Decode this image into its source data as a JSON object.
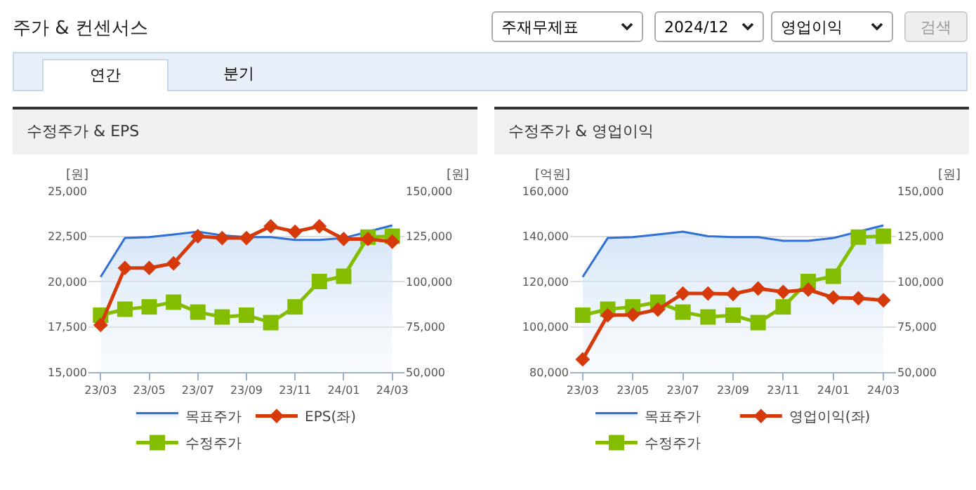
{
  "chart_data": [
    {
      "type": "other",
      "title": "주가 & 컨센서스",
      "annotations": [
        "주재무제표",
        "2024/12",
        "영업이익",
        "검색",
        "연간",
        "분기"
      ]
    },
    {
      "type": "line",
      "title": "수정주가 & EPS",
      "ylabel": "[원]",
      "y2label": "[원]",
      "categories": [
        "23/03",
        null,
        "23/05",
        null,
        "23/07",
        null,
        "23/09",
        null,
        "23/11",
        null,
        "24/01",
        null,
        "24/03"
      ],
      "series": [
        {
          "name": "목표주가",
          "type": "area",
          "axis": "y2",
          "color": "#2f6fd6",
          "marker": "none",
          "values": [
            102500,
            124000,
            124500,
            126000,
            127500,
            125500,
            124500,
            124500,
            123000,
            123000,
            124000,
            127500,
            131000
          ]
        },
        {
          "name": "EPS(좌)",
          "type": "line",
          "color": "#d63a0a",
          "marker": "diamond",
          "values": [
            17600,
            20750,
            20750,
            21000,
            22500,
            22400,
            22400,
            23050,
            22750,
            23050,
            22350,
            22350,
            22200
          ]
        },
        {
          "name": "수정주가",
          "type": "line",
          "axis": "y2",
          "color": "#84bd00",
          "marker": "square",
          "values": [
            81400,
            84700,
            86000,
            88600,
            83100,
            80400,
            81400,
            77300,
            86000,
            100000,
            102900,
            124500,
            125000
          ]
        }
      ],
      "ylim": [
        15000,
        25000
      ],
      "yticks": [
        {
          "value": 15000,
          "label": "15,000"
        },
        {
          "value": 17500,
          "label": "17,500"
        },
        {
          "value": 20000,
          "label": "20,000"
        },
        {
          "value": 22500,
          "label": "22,500"
        },
        {
          "value": 25000,
          "label": "25,000"
        }
      ],
      "y2lim": [
        50000,
        150000
      ],
      "y2ticks": [
        {
          "value": 50000,
          "label": "50,000"
        },
        {
          "value": 75000,
          "label": "75,000"
        },
        {
          "value": 100000,
          "label": "100,000"
        },
        {
          "value": 125000,
          "label": "125,000"
        },
        {
          "value": 150000,
          "label": "150,000"
        }
      ],
      "grid": "y",
      "legend": "bottom"
    },
    {
      "type": "line",
      "title": "수정주가 & 영업이익",
      "ylabel": "[억원]",
      "y2label": "[원]",
      "categories": [
        "23/03",
        null,
        "23/05",
        null,
        "23/07",
        null,
        "23/09",
        null,
        "23/11",
        null,
        "24/01",
        null,
        "24/03"
      ],
      "series": [
        {
          "name": "목표주가",
          "type": "area",
          "axis": "y2",
          "color": "#2f6fd6",
          "marker": "none",
          "values": [
            102500,
            124000,
            124500,
            126000,
            127500,
            125000,
            124500,
            124500,
            122500,
            122500,
            124000,
            127500,
            131000
          ]
        },
        {
          "name": "영업이익(좌)",
          "type": "line",
          "color": "#d63a0a",
          "marker": "diamond",
          "values": [
            85600,
            105100,
            105300,
            107600,
            114700,
            114700,
            114500,
            116900,
            115400,
            116400,
            112900,
            112600,
            111700
          ]
        },
        {
          "name": "수정주가",
          "type": "line",
          "axis": "y2",
          "color": "#84bd00",
          "marker": "square",
          "values": [
            81400,
            84700,
            86000,
            88600,
            83100,
            80400,
            81400,
            77300,
            86000,
            100000,
            102900,
            124500,
            125000
          ]
        }
      ],
      "ylim": [
        80000,
        160000
      ],
      "yticks": [
        {
          "value": 80000,
          "label": "80,000"
        },
        {
          "value": 100000,
          "label": "100,000"
        },
        {
          "value": 120000,
          "label": "120,000"
        },
        {
          "value": 140000,
          "label": "140,000"
        },
        {
          "value": 160000,
          "label": "160,000"
        }
      ],
      "y2lim": [
        50000,
        150000
      ],
      "y2ticks": [
        {
          "value": 50000,
          "label": "50,000"
        },
        {
          "value": 75000,
          "label": "75,000"
        },
        {
          "value": 100000,
          "label": "100,000"
        },
        {
          "value": 125000,
          "label": "125,000"
        },
        {
          "value": 150000,
          "label": "150,000"
        }
      ],
      "grid": "y",
      "legend": "bottom"
    }
  ]
}
